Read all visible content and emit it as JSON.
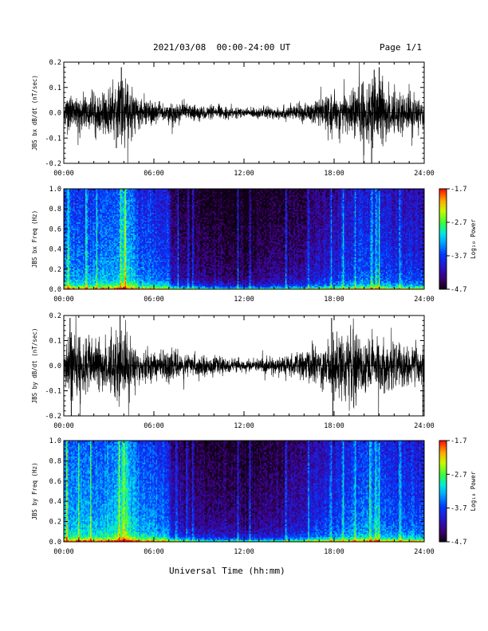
{
  "header": {
    "title": "2021/03/08  00:00-24:00 UT",
    "page": "Page 1/1"
  },
  "footer": {
    "xlabel": "Universal Time (hh:mm)"
  },
  "colors": {
    "background": "#ffffff",
    "trace": "#000000"
  },
  "chart_data": [
    {
      "id": "bx-derivative",
      "type": "line",
      "ylabel": "JBS bx dB/dt (nT/sec)",
      "ylim": [
        -0.2,
        0.2
      ],
      "yticks": [
        "0.2",
        "0.1",
        "0.0",
        "-0.1",
        "-0.2"
      ],
      "xticks": [
        "00:00",
        "06:00",
        "12:00",
        "18:00",
        "24:00"
      ],
      "xlim_hours": [
        0,
        24
      ],
      "series": [
        {
          "amplitude_envelope": {
            "hours": [
              0,
              2,
              3.5,
              4,
              5,
              7,
              9,
              11,
              12,
              13,
              15,
              16,
              17,
              18,
              19.5,
              20,
              20.5,
              21,
              22,
              24
            ],
            "values": [
              0.06,
              0.07,
              0.09,
              0.12,
              0.05,
              0.035,
              0.025,
              0.02,
              0.015,
              0.02,
              0.025,
              0.03,
              0.05,
              0.06,
              0.09,
              0.12,
              0.1,
              0.12,
              0.08,
              0.05
            ]
          },
          "peaks": [
            {
              "time": "03:50",
              "value": 0.18
            },
            {
              "time": "03:30",
              "value": -0.14
            },
            {
              "time": "20:40",
              "value": 0.17
            },
            {
              "time": "20:30",
              "value": -0.2
            },
            {
              "time": "21:00",
              "value": 0.18
            }
          ]
        }
      ]
    },
    {
      "id": "bx-spectrogram",
      "type": "heatmap",
      "ylabel": "JBS bx Freq (Hz)",
      "ylim": [
        0,
        1.0
      ],
      "yticks": [
        "1.0",
        "0.8",
        "0.6",
        "0.4",
        "0.2",
        "0.0"
      ],
      "xticks": [
        "00:00",
        "06:00",
        "12:00",
        "18:00",
        "24:00"
      ],
      "xlim_hours": [
        0,
        24
      ],
      "colorbar": {
        "label": "Log₁₀ Power",
        "min": -4.7,
        "max": -1.7,
        "ticks": [
          "-1.7",
          "-2.7",
          "-3.7",
          "-4.7"
        ]
      },
      "mean_log_power": {
        "hours": [
          0,
          2,
          3.5,
          4,
          5,
          7,
          7.2,
          9,
          11,
          12,
          13,
          15,
          16,
          17,
          18,
          19.5,
          20,
          21,
          22,
          24
        ],
        "values": [
          -3.4,
          -3.45,
          -3.3,
          -2.9,
          -3.5,
          -3.6,
          -4.2,
          -4.35,
          -4.4,
          -4.45,
          -4.4,
          -4.3,
          -4.2,
          -4.0,
          -3.9,
          -3.7,
          -3.6,
          -3.6,
          -3.8,
          -3.8
        ]
      },
      "bright_bands_hours": [
        0.3,
        1.5,
        2.2,
        3.8,
        4.1,
        7.6,
        8.3,
        8.6,
        11.6,
        12.4,
        14.8,
        16.3,
        17.8,
        18.6,
        19.4,
        20.5,
        20.8,
        21.0,
        22.4
      ]
    },
    {
      "id": "by-derivative",
      "type": "line",
      "ylabel": "JBS by dB/dt (nT/sec)",
      "ylim": [
        -0.2,
        0.2
      ],
      "yticks": [
        "0.2",
        "0.1",
        "0.0",
        "-0.1",
        "-0.2"
      ],
      "xticks": [
        "00:00",
        "06:00",
        "12:00",
        "18:00",
        "24:00"
      ],
      "xlim_hours": [
        0,
        24
      ],
      "series": [
        {
          "amplitude_envelope": {
            "hours": [
              0,
              0.5,
              1.5,
              2,
              3,
              3.5,
              4,
              5,
              6,
              7,
              9,
              11,
              12,
              13,
              15,
              16,
              17,
              18,
              19,
              20,
              21,
              22,
              24
            ],
            "values": [
              0.09,
              0.12,
              0.1,
              0.08,
              0.1,
              0.13,
              0.11,
              0.06,
              0.05,
              0.05,
              0.035,
              0.025,
              0.02,
              0.025,
              0.035,
              0.05,
              0.07,
              0.1,
              0.12,
              0.11,
              0.09,
              0.08,
              0.06
            ]
          },
          "peaks": [
            {
              "time": "00:25",
              "value": 0.19
            },
            {
              "time": "00:30",
              "value": -0.2
            },
            {
              "time": "03:45",
              "value": 0.2
            },
            {
              "time": "17:55",
              "value": -0.2
            },
            {
              "time": "17:50",
              "value": 0.19
            },
            {
              "time": "23:55",
              "value": -0.2
            }
          ]
        }
      ]
    },
    {
      "id": "by-spectrogram",
      "type": "heatmap",
      "ylabel": "JBS by Freq (Hz)",
      "ylim": [
        0,
        1.0
      ],
      "yticks": [
        "1.0",
        "0.8",
        "0.6",
        "0.4",
        "0.2",
        "0.0"
      ],
      "xticks": [
        "00:00",
        "06:00",
        "12:00",
        "18:00",
        "24:00"
      ],
      "xlim_hours": [
        0,
        24
      ],
      "colorbar": {
        "label": "Log₁₀ Power",
        "min": -4.7,
        "max": -1.7,
        "ticks": [
          "-1.7",
          "-2.7",
          "-3.7",
          "-4.7"
        ]
      },
      "mean_log_power": {
        "hours": [
          0,
          2,
          3.5,
          4,
          5,
          7,
          7.2,
          9,
          11,
          12,
          13,
          15,
          16,
          17,
          18,
          19.5,
          20,
          21,
          22,
          24
        ],
        "values": [
          -3.2,
          -3.3,
          -3.1,
          -2.8,
          -3.3,
          -3.5,
          -4.0,
          -4.25,
          -4.3,
          -4.35,
          -4.3,
          -4.15,
          -4.0,
          -3.8,
          -3.7,
          -3.5,
          -3.4,
          -3.4,
          -3.6,
          -3.6
        ]
      },
      "bright_bands_hours": [
        0.2,
        1.0,
        1.8,
        3.7,
        4.0,
        7.5,
        8.2,
        8.6,
        11.6,
        12.4,
        14.8,
        16.3,
        17.8,
        18.6,
        19.4,
        20.4,
        20.8,
        21.0,
        22.4
      ]
    }
  ]
}
